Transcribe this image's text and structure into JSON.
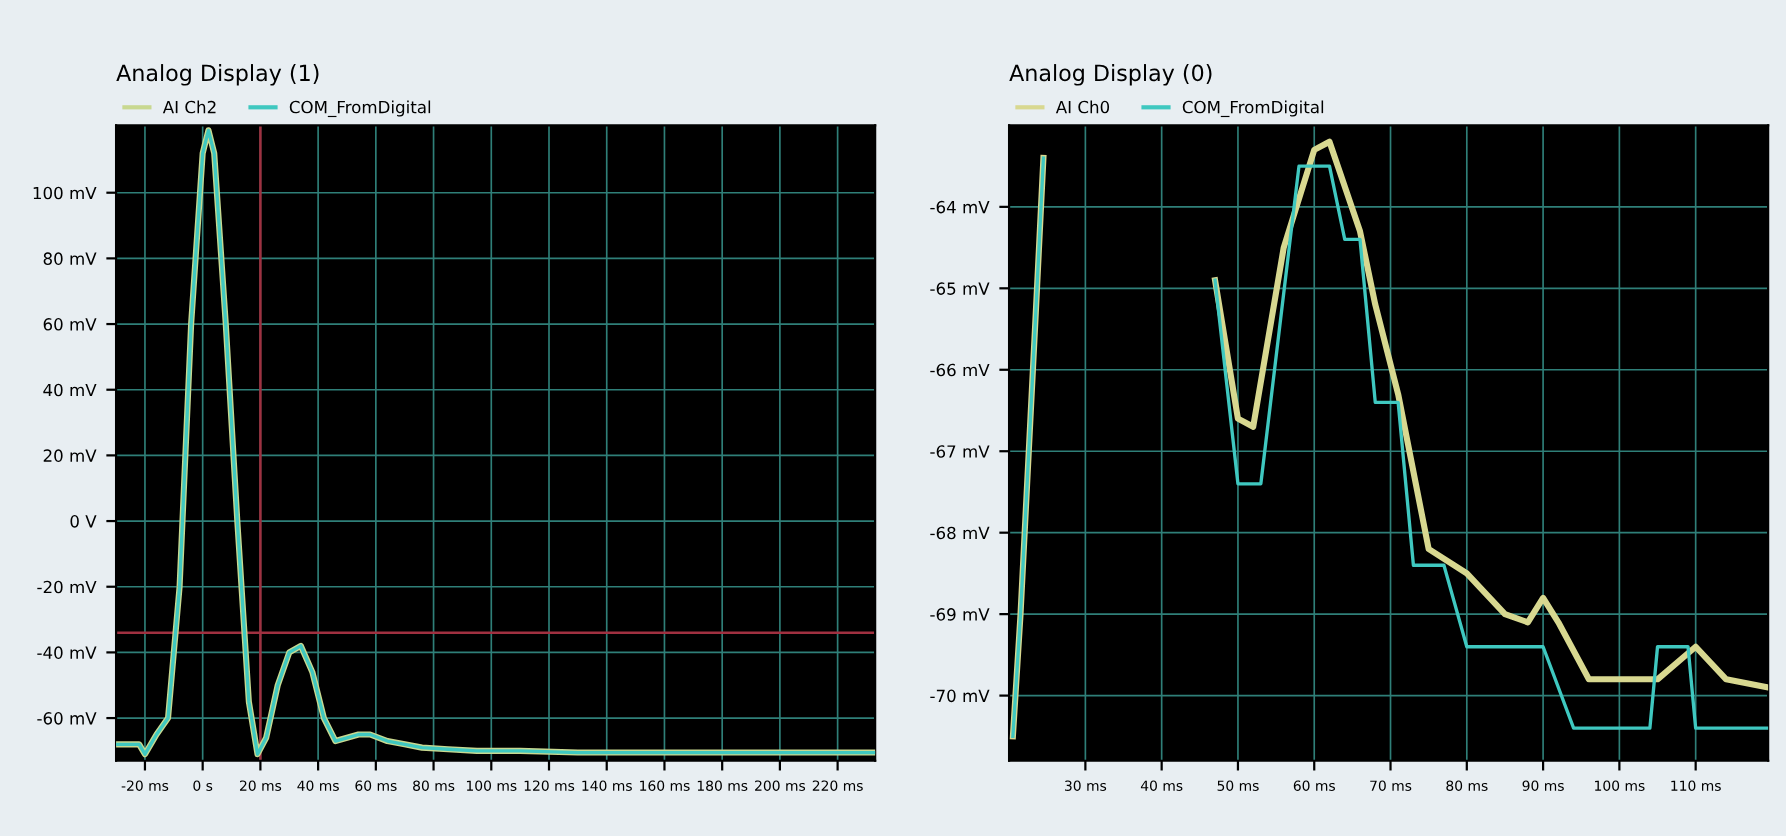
{
  "chart_data": [
    {
      "type": "line",
      "title": "Analog Display (1)",
      "legend": "top left",
      "grid": true,
      "xlim": [
        -30,
        233
      ],
      "ylim": [
        -73,
        120.5
      ],
      "xticks": [
        {
          "value": -20,
          "label": "-20 ms"
        },
        {
          "value": 0,
          "label": "0 s"
        },
        {
          "value": 20,
          "label": "20 ms"
        },
        {
          "value": 40,
          "label": "40 ms"
        },
        {
          "value": 60,
          "label": "60 ms"
        },
        {
          "value": 80,
          "label": "80 ms"
        },
        {
          "value": 100,
          "label": "100 ms"
        },
        {
          "value": 120,
          "label": "120 ms"
        },
        {
          "value": 140,
          "label": "140 ms"
        },
        {
          "value": 160,
          "label": "160 ms"
        },
        {
          "value": 180,
          "label": "180 ms"
        },
        {
          "value": 200,
          "label": "200 ms"
        },
        {
          "value": 220,
          "label": "220 ms"
        }
      ],
      "yticks": [
        {
          "value": -60,
          "label": "-60 mV"
        },
        {
          "value": -40,
          "label": "-40 mV"
        },
        {
          "value": -20,
          "label": "-20 mV"
        },
        {
          "value": 0,
          "label": "0 V"
        },
        {
          "value": 20,
          "label": "20 mV"
        },
        {
          "value": 40,
          "label": "40 mV"
        },
        {
          "value": 60,
          "label": "60 mV"
        },
        {
          "value": 80,
          "label": "80 mV"
        },
        {
          "value": 100,
          "label": "100 mV"
        }
      ],
      "ref_lines": [
        {
          "axis": "x",
          "value": 20,
          "color": "#a03040"
        },
        {
          "axis": "y",
          "value": -34,
          "color": "#a03040"
        }
      ],
      "series": [
        {
          "name": "AI Ch2",
          "color": "#c8d890",
          "x": [
            -30,
            -22,
            -20,
            -16,
            -12,
            -8,
            -4,
            0,
            2,
            4,
            8,
            12,
            16,
            19,
            22,
            26,
            30,
            34,
            38,
            42,
            46,
            50,
            54,
            58,
            64,
            70,
            76,
            85,
            95,
            110,
            130,
            160,
            190,
            220,
            233
          ],
          "values": [
            -68,
            -68,
            -71,
            -65,
            -60,
            -20,
            60,
            112,
            119,
            112,
            60,
            0,
            -55,
            -71,
            -66,
            -50,
            -40,
            -38,
            -46,
            -60,
            -67,
            -66,
            -65,
            -65,
            -67,
            -68,
            -69,
            -69.5,
            -70,
            -70,
            -70.5,
            -70.5,
            -70.5,
            -70.5,
            -70.5
          ]
        },
        {
          "name": "COM_FromDigital",
          "color": "#3fc8c0",
          "x": [
            -30,
            -22,
            -20,
            -16,
            -12,
            -8,
            -4,
            0,
            2,
            4,
            8,
            12,
            16,
            19,
            22,
            26,
            30,
            34,
            38,
            42,
            46,
            50,
            54,
            58,
            64,
            70,
            76,
            85,
            95,
            110,
            130,
            160,
            190,
            220,
            233
          ],
          "values": [
            -68,
            -68,
            -71,
            -65,
            -60,
            -20,
            60,
            112,
            119,
            112,
            60,
            0,
            -55,
            -71,
            -66,
            -50,
            -40,
            -38,
            -46,
            -60,
            -67,
            -66,
            -65,
            -65,
            -67,
            -68,
            -69,
            -69.5,
            -70,
            -70,
            -70.5,
            -70.5,
            -70.5,
            -70.5,
            -70.5
          ]
        }
      ]
    },
    {
      "type": "line",
      "title": "Analog Display (0)",
      "legend": "top left",
      "grid": true,
      "xlim": [
        20,
        119.5
      ],
      "ylim": [
        -70.8,
        -63
      ],
      "xticks": [
        {
          "value": 30,
          "label": "30 ms"
        },
        {
          "value": 40,
          "label": "40 ms"
        },
        {
          "value": 50,
          "label": "50 ms"
        },
        {
          "value": 60,
          "label": "60 ms"
        },
        {
          "value": 70,
          "label": "70 ms"
        },
        {
          "value": 80,
          "label": "80 ms"
        },
        {
          "value": 90,
          "label": "90 ms"
        },
        {
          "value": 100,
          "label": "100 ms"
        },
        {
          "value": 110,
          "label": "110 ms"
        }
      ],
      "yticks": [
        {
          "value": -70,
          "label": "-70 mV"
        },
        {
          "value": -69,
          "label": "-69 mV"
        },
        {
          "value": -68,
          "label": "-68 mV"
        },
        {
          "value": -67,
          "label": "-67 mV"
        },
        {
          "value": -66,
          "label": "-66 mV"
        },
        {
          "value": -65,
          "label": "-65 mV"
        },
        {
          "value": -64,
          "label": "-64 mV"
        }
      ],
      "series": [
        {
          "name": "AI Ch0",
          "color": "#d8d890",
          "x": [
            20.5,
            21.5,
            23.5,
            24.5,
            25,
            47,
            50,
            52,
            56,
            60,
            62,
            66,
            68,
            71,
            75,
            80,
            85,
            88,
            90,
            92,
            96,
            105,
            110,
            114,
            119.5
          ],
          "values": [
            -70.5,
            -69,
            -65.3,
            -63.4,
            null,
            -64.9,
            -66.6,
            -66.7,
            -64.5,
            -63.3,
            -63.2,
            -64.3,
            -65.2,
            -66.3,
            -68.2,
            -68.5,
            -69,
            -69.1,
            -68.8,
            -69.1,
            -69.8,
            -69.8,
            -69.4,
            -69.8,
            -69.9
          ]
        },
        {
          "name": "COM_FromDigital",
          "color": "#3fc8c0",
          "x": [
            20.5,
            21.5,
            23.5,
            24.5,
            25,
            47,
            50,
            53,
            58,
            62,
            64,
            66,
            68,
            71,
            73,
            77,
            80,
            90,
            94,
            104,
            105,
            109,
            110,
            119.5
          ],
          "values": [
            -70.5,
            -69,
            -65.3,
            -63.4,
            null,
            -64.9,
            -67.4,
            -67.4,
            -63.5,
            -63.5,
            -64.4,
            -64.4,
            -66.4,
            -66.4,
            -68.4,
            -68.4,
            -69.4,
            -69.4,
            -70.4,
            -70.4,
            -69.4,
            -69.4,
            -70.4,
            -70.4
          ]
        }
      ]
    }
  ]
}
